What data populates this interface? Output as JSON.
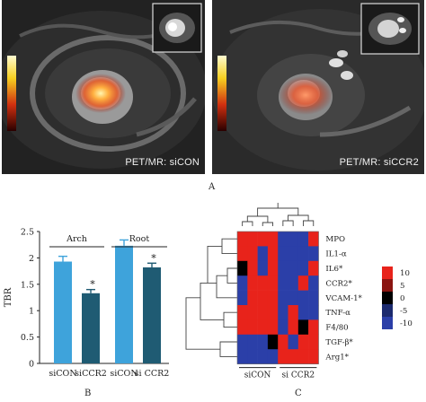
{
  "panel_a": {
    "left_label": "PET/MR: siCON",
    "right_label": "PET/MR: siCCR2",
    "letter": "A"
  },
  "panel_b": {
    "letter": "B",
    "ylabel": "TBR",
    "group_labels": [
      "Arch",
      "Root"
    ],
    "chart_data": {
      "type": "bar",
      "categories": [
        "siCON",
        "siCCR2",
        "siCON",
        "si CCR2"
      ],
      "values": [
        1.93,
        1.33,
        2.23,
        1.82
      ],
      "errors": [
        0.1,
        0.07,
        0.11,
        0.08
      ],
      "significance": [
        "",
        "*",
        "",
        "*"
      ],
      "colors": [
        "#3ea3db",
        "#1f5b73",
        "#3ea3db",
        "#1f5b73"
      ],
      "ylim": [
        0,
        2.5
      ],
      "yticks": [
        "0",
        "0.5",
        "1",
        "1.5",
        "2",
        "2.5"
      ]
    }
  },
  "panel_c": {
    "letter": "C",
    "rows": [
      "MPO",
      "IL1-α",
      "IL6*",
      "CCR2*",
      "VCAM-1*",
      "TNF-α",
      "F4/80",
      "TGF-β*",
      "Arg1*"
    ],
    "col_groups": [
      "siCON",
      "si CCR2"
    ],
    "colorbar_ticks": [
      "10",
      "5",
      "0",
      "-5",
      "-10"
    ],
    "chart_data": {
      "type": "heatmap",
      "rows": [
        "MPO",
        "IL1-α",
        "IL6*",
        "CCR2*",
        "VCAM-1*",
        "TNF-α",
        "F4/80",
        "TGF-β*",
        "Arg1*"
      ],
      "matrix": [
        [
          10,
          10,
          10,
          10,
          -10,
          -10,
          -10,
          10
        ],
        [
          10,
          10,
          -10,
          10,
          -10,
          -10,
          -10,
          -10
        ],
        [
          0,
          10,
          -10,
          10,
          -10,
          -10,
          -10,
          10
        ],
        [
          -10,
          10,
          10,
          10,
          -10,
          -10,
          10,
          -10
        ],
        [
          -10,
          10,
          10,
          10,
          -10,
          -10,
          -10,
          -10
        ],
        [
          6,
          10,
          10,
          10,
          -10,
          6,
          -10,
          -10
        ],
        [
          10,
          10,
          10,
          10,
          -10,
          6,
          0,
          10
        ],
        [
          -10,
          -10,
          -10,
          0,
          5,
          -10,
          10,
          10
        ],
        [
          -10,
          -10,
          -10,
          -10,
          10,
          10,
          10,
          10
        ]
      ],
      "zlim": [
        -10,
        10
      ]
    }
  }
}
